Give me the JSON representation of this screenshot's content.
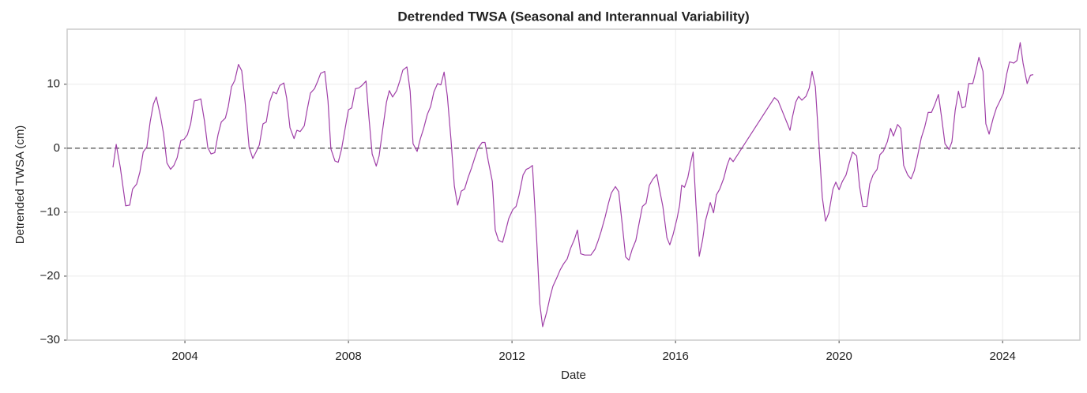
{
  "chart_data": {
    "type": "line",
    "title": "Detrended TWSA (Seasonal and Interannual Variability)",
    "xlabel": "Date",
    "ylabel": "Detrended TWSA (cm)",
    "color": "#a040a8",
    "grid": true,
    "reference_line": {
      "value": 0,
      "color": "#666666",
      "style": "dashed"
    },
    "xlim": [
      2001.12,
      2025.89
    ],
    "ylim": [
      -30,
      18.6
    ],
    "xticks": [
      2004,
      2008,
      2012,
      2016,
      2020,
      2024
    ],
    "yticks": [
      {
        "value": -30,
        "label": "−30"
      },
      {
        "value": -20,
        "label": "−20"
      },
      {
        "value": -10,
        "label": "−10"
      },
      0,
      10
    ],
    "x": [
      2002.24,
      2002.32,
      2002.42,
      2002.55,
      2002.65,
      2002.72,
      2002.82,
      2002.9,
      2002.98,
      2003.07,
      2003.15,
      2003.23,
      2003.3,
      2003.4,
      2003.48,
      2003.56,
      2003.65,
      2003.73,
      2003.81,
      2003.9,
      2003.98,
      2004.06,
      2004.14,
      2004.23,
      2004.31,
      2004.39,
      2004.48,
      2004.56,
      2004.64,
      2004.73,
      2004.81,
      2004.89,
      2004.99,
      2005.06,
      2005.14,
      2005.22,
      2005.31,
      2005.39,
      2005.47,
      2005.57,
      2005.66,
      2005.74,
      2005.82,
      2005.91,
      2005.99,
      2006.07,
      2006.16,
      2006.24,
      2006.32,
      2006.42,
      2006.49,
      2006.57,
      2006.67,
      2006.74,
      2006.82,
      2006.92,
      2006.99,
      2007.07,
      2007.17,
      2007.25,
      2007.32,
      2007.42,
      2007.5,
      2007.57,
      2007.67,
      2007.75,
      2007.83,
      2007.92,
      2008.0,
      2008.08,
      2008.17,
      2008.25,
      2008.33,
      2008.43,
      2008.5,
      2008.58,
      2008.68,
      2008.75,
      2008.83,
      2008.93,
      2009.0,
      2009.08,
      2009.18,
      2009.26,
      2009.33,
      2009.43,
      2009.51,
      2009.58,
      2009.68,
      2009.76,
      2009.84,
      2009.93,
      2010.01,
      2010.09,
      2010.18,
      2010.26,
      2010.34,
      2010.42,
      2010.51,
      2010.59,
      2010.67,
      2010.76,
      2010.84,
      2010.92,
      2011.01,
      2011.09,
      2011.17,
      2011.27,
      2011.34,
      2011.42,
      2011.52,
      2011.59,
      2011.67,
      2011.77,
      2011.85,
      2011.92,
      2012.02,
      2012.1,
      2012.17,
      2012.27,
      2012.35,
      2012.42,
      2012.5,
      2012.6,
      2012.68,
      2012.75,
      2012.85,
      2012.93,
      2013.0,
      2013.1,
      2013.18,
      2013.26,
      2013.35,
      2013.43,
      2013.53,
      2013.6,
      2013.68,
      2013.78,
      2013.86,
      2013.93,
      2014.03,
      2014.11,
      2014.18,
      2014.28,
      2014.36,
      2014.43,
      2014.53,
      2014.61,
      2014.69,
      2014.78,
      2014.86,
      2014.94,
      2015.03,
      2015.11,
      2015.19,
      2015.28,
      2015.36,
      2015.44,
      2015.54,
      2015.61,
      2015.69,
      2015.79,
      2015.86,
      2015.94,
      2016.04,
      2016.1,
      2016.15,
      2016.22,
      2016.3,
      2016.37,
      2016.43,
      2016.5,
      2016.58,
      2016.66,
      2016.73,
      2016.85,
      2016.93,
      2017.0,
      2017.08,
      2017.18,
      2017.26,
      2017.33,
      2017.41,
      2018.42,
      2018.51,
      2018.8,
      2018.86,
      2018.94,
      2019.01,
      2019.09,
      2019.19,
      2019.27,
      2019.34,
      2019.42,
      2019.59,
      2019.67,
      2019.75,
      2019.85,
      2019.92,
      2020.0,
      2020.08,
      2020.17,
      2020.25,
      2020.33,
      2020.43,
      2020.5,
      2020.58,
      2020.68,
      2020.75,
      2020.83,
      2020.93,
      2021.0,
      2021.08,
      2021.18,
      2021.26,
      2021.33,
      2021.43,
      2021.51,
      2021.58,
      2021.68,
      2021.76,
      2021.84,
      2021.93,
      2022.01,
      2022.09,
      2022.18,
      2022.26,
      2022.34,
      2022.43,
      2022.51,
      2022.59,
      2022.69,
      2022.76,
      2022.84,
      2022.92,
      2023.01,
      2023.09,
      2023.17,
      2023.27,
      2023.34,
      2023.42,
      2023.52,
      2023.59,
      2023.67,
      2023.77,
      2023.85,
      2023.92,
      2024.02,
      2024.1,
      2024.17,
      2024.27,
      2024.35,
      2024.43,
      2024.5,
      2024.6,
      2024.68,
      2024.75
    ],
    "values": [
      -3.0,
      0.6,
      -3.0,
      -9.0,
      -8.9,
      -6.4,
      -5.6,
      -3.7,
      -0.6,
      0.2,
      4.1,
      6.9,
      8.0,
      5.1,
      2.2,
      -2.3,
      -3.3,
      -2.7,
      -1.5,
      1.2,
      1.4,
      2.1,
      3.8,
      7.4,
      7.5,
      7.7,
      4.2,
      0.1,
      -0.9,
      -0.7,
      2.1,
      4.1,
      4.7,
      6.5,
      9.6,
      10.6,
      13.1,
      12.1,
      7.4,
      0.2,
      -1.6,
      -0.6,
      0.5,
      3.8,
      4.1,
      7.2,
      8.8,
      8.5,
      9.8,
      10.2,
      7.8,
      3.2,
      1.5,
      2.8,
      2.6,
      3.5,
      6.0,
      8.6,
      9.3,
      10.5,
      11.7,
      12.0,
      7.4,
      -0.1,
      -2.0,
      -2.2,
      -0.2,
      3.1,
      6.0,
      6.3,
      9.3,
      9.4,
      9.8,
      10.5,
      4.9,
      -0.9,
      -2.8,
      -1.2,
      2.6,
      7.2,
      9.0,
      8.0,
      9.0,
      10.6,
      12.2,
      12.7,
      8.9,
      0.7,
      -0.5,
      1.5,
      3.1,
      5.3,
      6.5,
      8.8,
      10.1,
      9.9,
      11.9,
      8.1,
      1.2,
      -5.9,
      -8.9,
      -6.7,
      -6.4,
      -4.7,
      -3.1,
      -1.5,
      0.0,
      0.9,
      0.9,
      -2.0,
      -5.2,
      -12.8,
      -14.4,
      -14.7,
      -12.8,
      -11.0,
      -9.6,
      -9.1,
      -7.4,
      -4.2,
      -3.3,
      -3.1,
      -2.7,
      -13.8,
      -24.3,
      -27.9,
      -25.6,
      -23.3,
      -21.6,
      -20.2,
      -19.0,
      -18.1,
      -17.3,
      -15.7,
      -14.2,
      -12.8,
      -16.5,
      -16.7,
      -16.7,
      -16.7,
      -15.8,
      -14.4,
      -13.0,
      -10.7,
      -8.6,
      -7.0,
      -6.0,
      -6.8,
      -11.5,
      -17.0,
      -17.5,
      -15.8,
      -14.4,
      -11.7,
      -9.1,
      -8.6,
      -5.8,
      -4.9,
      -4.1,
      -6.5,
      -9.1,
      -14.0,
      -15.1,
      -13.5,
      -10.9,
      -8.9,
      -5.8,
      -6.1,
      -4.6,
      -2.3,
      -0.6,
      -8.9,
      -16.9,
      -14.4,
      -11.4,
      -8.5,
      -10.1,
      -7.3,
      -6.4,
      -4.7,
      -2.7,
      -1.5,
      -2.1,
      7.9,
      7.4,
      2.8,
      4.9,
      7.2,
      8.1,
      7.5,
      8.1,
      9.4,
      12.0,
      9.6,
      -7.7,
      -11.4,
      -10.1,
      -6.4,
      -5.3,
      -6.5,
      -5.2,
      -4.2,
      -2.3,
      -0.6,
      -1.2,
      -5.9,
      -9.1,
      -9.1,
      -5.6,
      -4.2,
      -3.3,
      -1.0,
      -0.5,
      1.0,
      3.1,
      1.9,
      3.7,
      3.1,
      -2.7,
      -4.2,
      -4.8,
      -3.5,
      -0.9,
      1.6,
      3.2,
      5.6,
      5.6,
      6.8,
      8.4,
      4.7,
      0.7,
      -0.2,
      1.0,
      5.9,
      8.9,
      6.3,
      6.5,
      10.1,
      10.1,
      11.9,
      14.2,
      12.0,
      3.8,
      2.2,
      4.7,
      6.3,
      7.2,
      8.6,
      11.6,
      13.5,
      13.3,
      13.7,
      16.5,
      13.3,
      10.1,
      11.4,
      11.5
    ]
  }
}
